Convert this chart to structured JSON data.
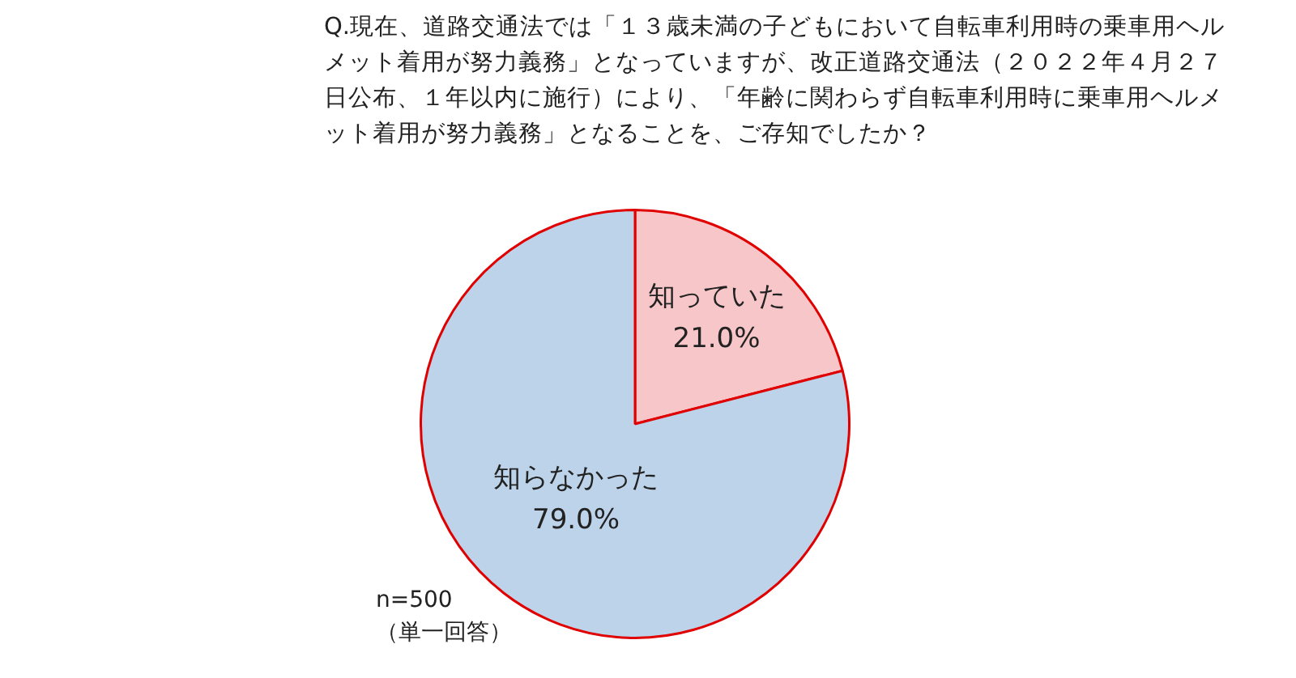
{
  "chart_data": {
    "type": "pie",
    "title": "Q.現在、道路交通法では「１３歳未満の子どもにおいて自転車利用時の乗車用ヘルメット着用が努力義務」となっていますが、改正道路交通法（２０２２年４月２７日公布、１年以内に施行）により、「年齢に関わらず自転車利用時に乗車用ヘルメット着用が努力義務」となることを、ご存知でしたか？",
    "categories": [
      "知っていた",
      "知らなかった"
    ],
    "values": [
      21.0,
      79.0
    ],
    "value_labels": [
      "21.0%",
      "79.0%"
    ],
    "colors": [
      "#f6c6c8",
      "#bcd3e9"
    ],
    "annotations": [
      "n=500",
      "（単一回答）"
    ]
  }
}
